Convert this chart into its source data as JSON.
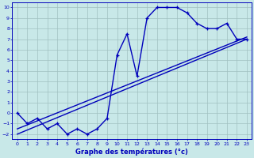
{
  "xlabel": "Graphe des températures (°c)",
  "hours": [
    0,
    1,
    2,
    3,
    4,
    5,
    6,
    7,
    8,
    9,
    10,
    11,
    12,
    13,
    14,
    15,
    16,
    17,
    18,
    19,
    20,
    21,
    22,
    23
  ],
  "temps": [
    0,
    -1,
    -0.5,
    -1.5,
    -1,
    -2,
    -1.5,
    -2,
    -1.5,
    -0.5,
    5.5,
    7.5,
    3.5,
    9,
    10,
    10,
    10,
    9.5,
    8.5,
    8,
    8,
    8.5,
    7,
    7
  ],
  "line_color": "#0000bb",
  "bg_color": "#c8e8e8",
  "grid_color": "#a0c0c0",
  "ylim": [
    -2.5,
    10.5
  ],
  "xlim": [
    -0.5,
    23.5
  ],
  "yticks": [
    -2,
    -1,
    0,
    1,
    2,
    3,
    4,
    5,
    6,
    7,
    8,
    9,
    10
  ],
  "xticks": [
    0,
    1,
    2,
    3,
    4,
    5,
    6,
    7,
    8,
    9,
    10,
    11,
    12,
    13,
    14,
    15,
    16,
    17,
    18,
    19,
    20,
    21,
    22,
    23
  ],
  "marker_size": 3.5,
  "line_width": 1.0,
  "reg_line1": [
    [
      0,
      -1.5
    ],
    [
      23,
      7.2
    ]
  ],
  "reg_line2": [
    [
      0,
      -2.0
    ],
    [
      23,
      7.0
    ]
  ]
}
